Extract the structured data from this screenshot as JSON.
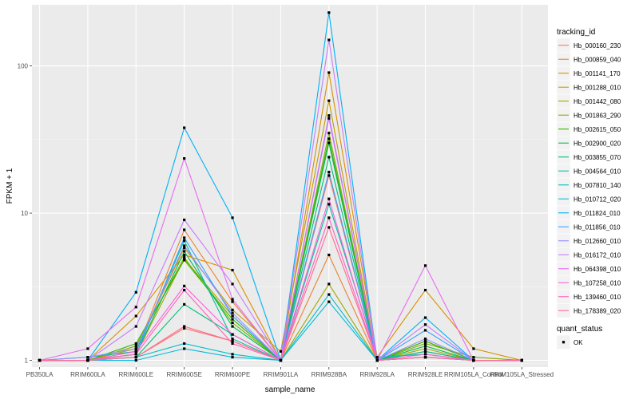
{
  "chart_data": {
    "type": "line",
    "xlabel": "sample_name",
    "ylabel": "FPKM + 1",
    "y_scale": "log10",
    "ylim": [
      0.9,
      260
    ],
    "y_ticks": [
      1,
      10,
      100
    ],
    "grid": true,
    "legend_placement": "right",
    "categories": [
      "PB350LA",
      "RRIM600LA",
      "RRIM600LE",
      "RRIM600SE",
      "RRIM600PE",
      "RRIM901LA",
      "RRIM928BA",
      "RRIM928LA",
      "RRIM928LE",
      "RRIM105LA_Control",
      "RRIM105LA_Stressed"
    ],
    "color_legend": {
      "title": "tracking_id"
    },
    "shape_legend": {
      "title": "quant_status",
      "entries": [
        "OK"
      ]
    },
    "series": [
      {
        "name": "Hb_000160_230",
        "color": "#F8766D",
        "values": [
          1.0,
          1.0,
          1.05,
          1.65,
          1.35,
          1.0,
          18.0,
          1.0,
          1.15,
          1.0,
          1.0
        ]
      },
      {
        "name": "Hb_000859_040",
        "color": "#EA8331",
        "values": [
          1.0,
          1.0,
          1.15,
          7.7,
          2.5,
          1.0,
          5.2,
          1.0,
          1.05,
          1.0,
          1.0
        ]
      },
      {
        "name": "Hb_001141_170",
        "color": "#D89000",
        "values": [
          1.0,
          1.0,
          2.0,
          5.2,
          4.1,
          1.0,
          90.0,
          1.05,
          3.0,
          1.2,
          1.0
        ]
      },
      {
        "name": "Hb_001288_010",
        "color": "#C09B00",
        "values": [
          1.0,
          1.0,
          1.2,
          5.8,
          2.2,
          1.15,
          58.0,
          1.0,
          1.35,
          1.0,
          1.0
        ]
      },
      {
        "name": "Hb_001442_080",
        "color": "#A3A500",
        "values": [
          1.0,
          1.0,
          1.1,
          4.9,
          2.0,
          1.0,
          3.3,
          1.0,
          1.2,
          1.0,
          1.0
        ]
      },
      {
        "name": "Hb_001863_290",
        "color": "#7CAE00",
        "values": [
          1.0,
          1.0,
          1.25,
          5.0,
          1.8,
          1.0,
          35.0,
          1.0,
          1.3,
          1.05,
          1.0
        ]
      },
      {
        "name": "Hb_002615_050",
        "color": "#39B600",
        "values": [
          1.0,
          1.0,
          1.3,
          4.8,
          1.9,
          1.0,
          32.0,
          1.0,
          1.35,
          1.0,
          1.0
        ]
      },
      {
        "name": "Hb_002900_020",
        "color": "#00BB4E",
        "values": [
          1.0,
          1.0,
          1.1,
          5.5,
          1.7,
          1.0,
          30.0,
          1.0,
          1.25,
          1.0,
          1.0
        ]
      },
      {
        "name": "Hb_003855_070",
        "color": "#00BF7D",
        "values": [
          1.0,
          1.0,
          1.05,
          2.4,
          1.5,
          1.0,
          24.0,
          1.0,
          1.15,
          1.0,
          1.0
        ]
      },
      {
        "name": "Hb_004564_010",
        "color": "#00C1A3",
        "values": [
          1.0,
          1.05,
          1.15,
          6.5,
          1.4,
          1.0,
          11.5,
          1.05,
          1.1,
          1.0,
          1.0
        ]
      },
      {
        "name": "Hb_007810_140",
        "color": "#00BFC4",
        "values": [
          1.0,
          1.0,
          1.05,
          1.3,
          1.1,
          1.0,
          2.8,
          1.0,
          1.05,
          1.0,
          1.0
        ]
      },
      {
        "name": "Hb_010712_020",
        "color": "#00BAE0",
        "values": [
          1.0,
          1.0,
          1.0,
          1.2,
          1.05,
          1.0,
          2.5,
          1.0,
          1.05,
          1.0,
          1.0
        ]
      },
      {
        "name": "Hb_011824_010",
        "color": "#00B0F6",
        "values": [
          1.0,
          1.0,
          2.9,
          38.0,
          9.3,
          1.0,
          230.0,
          1.0,
          1.95,
          1.0,
          1.0
        ]
      },
      {
        "name": "Hb_011856_010",
        "color": "#35A2FF",
        "values": [
          1.0,
          1.0,
          1.1,
          6.8,
          2.0,
          1.0,
          19.0,
          1.0,
          1.6,
          1.0,
          1.0
        ]
      },
      {
        "name": "Hb_012660_010",
        "color": "#9590FF",
        "values": [
          1.0,
          1.05,
          1.2,
          6.0,
          2.1,
          1.0,
          46.0,
          1.0,
          1.4,
          1.0,
          1.0
        ]
      },
      {
        "name": "Hb_016172_010",
        "color": "#C77CFF",
        "values": [
          1.0,
          1.0,
          1.7,
          9.0,
          3.3,
          1.0,
          150.0,
          1.0,
          1.75,
          1.0,
          1.0
        ]
      },
      {
        "name": "Hb_064398_010",
        "color": "#E76BF3",
        "values": [
          1.0,
          1.2,
          2.3,
          23.5,
          2.6,
          1.0,
          44.0,
          1.0,
          4.4,
          1.0,
          1.0
        ]
      },
      {
        "name": "Hb_107258_010",
        "color": "#FA62DB",
        "values": [
          1.0,
          1.0,
          1.15,
          3.2,
          1.5,
          1.0,
          12.5,
          1.0,
          1.1,
          1.0,
          1.0
        ]
      },
      {
        "name": "Hb_139460_010",
        "color": "#FF62BC",
        "values": [
          1.0,
          1.0,
          1.1,
          3.0,
          1.3,
          1.0,
          9.3,
          1.0,
          1.05,
          1.0,
          1.0
        ]
      },
      {
        "name": "Hb_178389_020",
        "color": "#FF6C91",
        "values": [
          1.0,
          1.0,
          1.05,
          1.7,
          1.35,
          1.0,
          8.0,
          1.0,
          1.05,
          1.0,
          1.0
        ]
      }
    ]
  }
}
